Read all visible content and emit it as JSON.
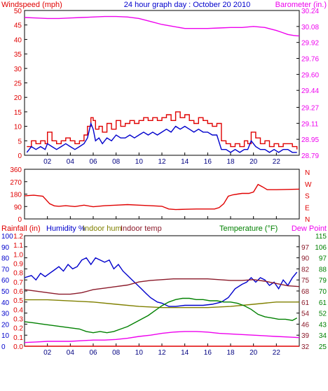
{
  "colors": {
    "red": "#e00000",
    "blue": "#0000cc",
    "magenta": "#ee00ee",
    "green": "#008000",
    "olive": "#808000",
    "maroon": "#8b1a2a",
    "frame": "#000000",
    "bg": "#ffffff"
  },
  "chart_data": [
    {
      "type": "line",
      "title": "24 hour graph day : October 20 2010",
      "left_axis_label": "Windspeed (mph)",
      "right_axis_label": "Barometer (in.)",
      "x_ticks": [
        "02",
        "04",
        "06",
        "08",
        "10",
        "12",
        "14",
        "16",
        "18",
        "20",
        "22"
      ],
      "xlim": [
        0,
        24
      ],
      "ylim_left": [
        0,
        50
      ],
      "y_ticks_left": [
        "0",
        "5",
        "10",
        "15",
        "20",
        "25",
        "30",
        "35",
        "40",
        "45",
        "50"
      ],
      "ylim_right": [
        28.79,
        30.24
      ],
      "y_ticks_right": [
        "28.79",
        "28.95",
        "29.11",
        "29.27",
        "29.44",
        "29.60",
        "29.76",
        "29.92",
        "30.08",
        "30.24"
      ],
      "series": [
        {
          "name": "Windspeed (mph)",
          "axis": "left",
          "color": "#e00000",
          "step": true,
          "x": [
            0.2,
            0.6,
            1.0,
            1.4,
            1.8,
            2.0,
            2.4,
            2.8,
            3.2,
            3.6,
            4.0,
            4.4,
            4.8,
            5.2,
            5.5,
            5.8,
            6.0,
            6.2,
            6.5,
            6.8,
            7.2,
            7.6,
            8.0,
            8.4,
            8.8,
            9.2,
            9.6,
            10.0,
            10.4,
            10.8,
            11.2,
            11.6,
            12.0,
            12.4,
            12.8,
            13.2,
            13.6,
            14.0,
            14.4,
            14.8,
            15.2,
            15.6,
            16.0,
            16.4,
            16.8,
            17.2,
            17.6,
            18.0,
            18.4,
            18.8,
            19.2,
            19.5,
            19.8,
            20.2,
            20.6,
            21.0,
            21.4,
            21.8,
            22.2,
            22.6,
            23.0,
            23.4,
            23.8
          ],
          "y": [
            3,
            5,
            4,
            5,
            4,
            8,
            5,
            4,
            5,
            6,
            5,
            4,
            5,
            7,
            10,
            13,
            12,
            9,
            10,
            8,
            11,
            9,
            12,
            10,
            11,
            12,
            11,
            12,
            13,
            12,
            13,
            12,
            13,
            14,
            12,
            15,
            13,
            14,
            12,
            11,
            13,
            12,
            11,
            10,
            11,
            5,
            4,
            3,
            4,
            3,
            5,
            4,
            8,
            6,
            4,
            5,
            3,
            4,
            3,
            4,
            4,
            3,
            2
          ]
        },
        {
          "name": "Wind gust",
          "axis": "left",
          "color": "#0000cc",
          "step": false,
          "x": [
            0.2,
            0.6,
            1.0,
            1.4,
            1.8,
            2.0,
            2.4,
            2.8,
            3.2,
            3.6,
            4.0,
            4.4,
            4.8,
            5.2,
            5.5,
            5.8,
            6.0,
            6.2,
            6.5,
            6.8,
            7.2,
            7.6,
            8.0,
            8.4,
            8.8,
            9.2,
            9.6,
            10.0,
            10.4,
            10.8,
            11.2,
            11.6,
            12.0,
            12.4,
            12.8,
            13.2,
            13.6,
            14.0,
            14.4,
            14.8,
            15.2,
            15.6,
            16.0,
            16.4,
            16.8,
            17.2,
            17.6,
            18.0,
            18.4,
            18.8,
            19.2,
            19.5,
            19.8,
            20.2,
            20.6,
            21.0,
            21.4,
            21.8,
            22.2,
            22.6,
            23.0,
            23.4,
            23.8
          ],
          "y": [
            1,
            3,
            2,
            3,
            2,
            4,
            3,
            2,
            3,
            4,
            3,
            2,
            3,
            4,
            6,
            11,
            9,
            5,
            6,
            4,
            6,
            5,
            7,
            6,
            6,
            7,
            6,
            7,
            8,
            7,
            8,
            7,
            8,
            9,
            8,
            10,
            9,
            10,
            9,
            8,
            9,
            8,
            8,
            7,
            7,
            2,
            2,
            1,
            2,
            1,
            2,
            2,
            5,
            3,
            2,
            2,
            1,
            2,
            1,
            2,
            2,
            1,
            1
          ]
        },
        {
          "name": "Barometer (in.)",
          "axis": "right",
          "color": "#ee00ee",
          "step": false,
          "x": [
            0,
            1,
            2,
            3,
            4,
            5,
            6,
            7,
            8,
            9,
            10,
            11,
            12,
            13,
            14,
            15,
            16,
            17,
            18,
            19,
            20,
            21,
            22,
            22.5,
            23,
            23.5,
            24
          ],
          "y": [
            30.17,
            30.165,
            30.16,
            30.16,
            30.165,
            30.17,
            30.175,
            30.18,
            30.18,
            30.175,
            30.16,
            30.13,
            30.1,
            30.08,
            30.06,
            30.06,
            30.06,
            30.065,
            30.07,
            30.07,
            30.08,
            30.07,
            30.04,
            30.02,
            30.0,
            29.99,
            29.985
          ]
        }
      ]
    },
    {
      "type": "line",
      "title": "",
      "xlim": [
        0,
        24
      ],
      "ylim_left": [
        0,
        360
      ],
      "y_ticks_left": [
        "0",
        "90",
        "180",
        "270",
        "360"
      ],
      "right_axis_label": "N W S E N",
      "right_ticks": [
        "N",
        "W",
        "S",
        "E",
        "N"
      ],
      "series": [
        {
          "name": "Wind direction",
          "axis": "left",
          "color": "#e00000",
          "step": false,
          "x": [
            0,
            0.8,
            1.6,
            2.2,
            2.6,
            3.0,
            3.6,
            4.4,
            5.2,
            6.0,
            7.0,
            8.0,
            9.0,
            10.0,
            11.0,
            12.0,
            12.6,
            13.2,
            14.0,
            15.0,
            16.0,
            16.6,
            17.0,
            17.4,
            17.8,
            18.2,
            18.6,
            19.0,
            19.6,
            20.0,
            20.4,
            20.8,
            21.2,
            22.0,
            23.0,
            24.0
          ],
          "y": [
            168,
            172,
            165,
            110,
            95,
            92,
            96,
            90,
            100,
            88,
            96,
            100,
            104,
            100,
            96,
            92,
            72,
            68,
            70,
            72,
            72,
            72,
            82,
            110,
            165,
            175,
            180,
            185,
            185,
            195,
            250,
            232,
            212,
            212,
            214,
            216
          ]
        }
      ]
    },
    {
      "type": "line",
      "title": "",
      "left_labels": [
        "Rainfall (in)",
        "Humidity %",
        "Indoor hum",
        "Indoor temp"
      ],
      "right_labels": [
        "Temperature (°F)",
        "Dew Point"
      ],
      "xlim": [
        0,
        24
      ],
      "ylim_humidity": [
        0,
        100
      ],
      "ylim_rain": [
        0,
        1.2
      ],
      "ylim_temp": [
        25,
        115
      ],
      "y_ticks_humidity": [
        "0",
        "10",
        "20",
        "30",
        "40",
        "50",
        "60",
        "70",
        "80",
        "90",
        "100"
      ],
      "y_ticks_rain": [
        "0.0",
        "0.1",
        "0.2",
        "0.3",
        "0.4",
        "0.5",
        "0.6",
        "0.7",
        "0.8",
        "0.9",
        "1.0",
        "1.1",
        "1.2"
      ],
      "y_ticks_temp1": [
        "32",
        "39",
        "46",
        "54",
        "61",
        "68",
        "75",
        "82",
        "90",
        "97"
      ],
      "y_ticks_temp2": [
        "25",
        "34",
        "43",
        "52",
        "61",
        "70",
        "79",
        "88",
        "97",
        "106",
        "115"
      ],
      "series": [
        {
          "name": "Humidity %",
          "axis": "humidity",
          "color": "#0000cc",
          "x": [
            0,
            0.6,
            1.0,
            1.4,
            1.8,
            2.2,
            2.6,
            3.0,
            3.4,
            3.8,
            4.2,
            4.6,
            5.0,
            5.4,
            5.8,
            6.2,
            6.6,
            7.0,
            7.4,
            7.8,
            8.2,
            8.6,
            9.0,
            9.4,
            9.8,
            10.2,
            10.6,
            11.0,
            11.6,
            12.0,
            12.6,
            13.2,
            14.0,
            14.8,
            15.6,
            16.4,
            17.2,
            17.8,
            18.4,
            19.0,
            19.4,
            19.8,
            20.2,
            20.6,
            21.0,
            21.4,
            21.8,
            22.2,
            22.6,
            23.0,
            23.4,
            23.8
          ],
          "y": [
            62,
            64,
            60,
            66,
            63,
            66,
            69,
            72,
            68,
            74,
            70,
            72,
            78,
            80,
            74,
            80,
            78,
            76,
            78,
            70,
            74,
            68,
            64,
            60,
            56,
            52,
            48,
            44,
            40,
            39,
            36,
            36,
            37,
            37,
            37,
            38,
            40,
            44,
            52,
            56,
            58,
            62,
            58,
            62,
            60,
            55,
            58,
            52,
            60,
            55,
            62,
            67
          ]
        },
        {
          "name": "Indoor hum",
          "axis": "humidity",
          "color": "#808000",
          "x": [
            0,
            2,
            4,
            6,
            8,
            10,
            12,
            14,
            16,
            18,
            20,
            22,
            24
          ],
          "y": [
            42,
            42,
            41,
            40,
            38,
            36,
            35,
            35,
            35,
            36,
            38,
            40,
            40
          ]
        },
        {
          "name": "Indoor temp",
          "axis": "temp1",
          "color": "#8b1a2a",
          "x": [
            0,
            1,
            2,
            3,
            4,
            5,
            6,
            7,
            8,
            9,
            10,
            11,
            12,
            13,
            14,
            15,
            16,
            17,
            18,
            19,
            20,
            21,
            22,
            23,
            24
          ],
          "y": [
            69,
            68,
            67,
            66,
            66,
            67,
            69,
            70,
            71,
            72,
            74,
            75,
            75.5,
            76,
            76,
            76,
            76,
            75.5,
            75,
            75,
            75.5,
            74.5,
            73,
            71.5,
            71
          ]
        },
        {
          "name": "Temperature (°F)",
          "axis": "temp2",
          "color": "#008000",
          "x": [
            0,
            0.8,
            1.6,
            2.4,
            3.2,
            4.0,
            4.8,
            5.4,
            6.0,
            6.6,
            7.2,
            7.8,
            8.4,
            9.0,
            9.6,
            10.2,
            10.8,
            11.4,
            12.0,
            12.6,
            13.2,
            13.8,
            14.4,
            15.0,
            15.6,
            16.2,
            16.8,
            17.4,
            18.0,
            18.6,
            19.2,
            19.8,
            20.4,
            21.0,
            21.6,
            22.2,
            22.8,
            23.4,
            23.8
          ],
          "y": [
            45,
            44,
            43,
            42,
            41,
            40,
            39,
            37,
            36,
            37,
            36,
            37,
            39,
            41,
            44,
            47,
            50,
            54,
            58,
            61,
            63,
            64,
            64,
            63,
            63,
            62,
            62,
            61,
            61,
            60,
            58,
            55,
            51,
            49,
            48,
            47,
            47,
            46,
            48
          ]
        },
        {
          "name": "Dew Point",
          "axis": "temp2",
          "color": "#ee00ee",
          "x": [
            0,
            1,
            2,
            3,
            4,
            5,
            6,
            7,
            8,
            9,
            10,
            11,
            12,
            13,
            14,
            15,
            16,
            17,
            18,
            19,
            20,
            21,
            22,
            23,
            24
          ],
          "y": [
            28,
            28.5,
            29,
            29,
            29,
            29.5,
            30,
            30,
            30.5,
            31.5,
            33,
            34,
            35.5,
            36.5,
            37,
            37,
            36.5,
            35.5,
            35,
            34.5,
            34,
            33.5,
            33,
            32.5,
            32
          ]
        },
        {
          "name": "Rainfall (in)",
          "axis": "rain",
          "color": "#e00000",
          "x": [
            0,
            24
          ],
          "y": [
            0,
            0
          ]
        }
      ]
    }
  ]
}
